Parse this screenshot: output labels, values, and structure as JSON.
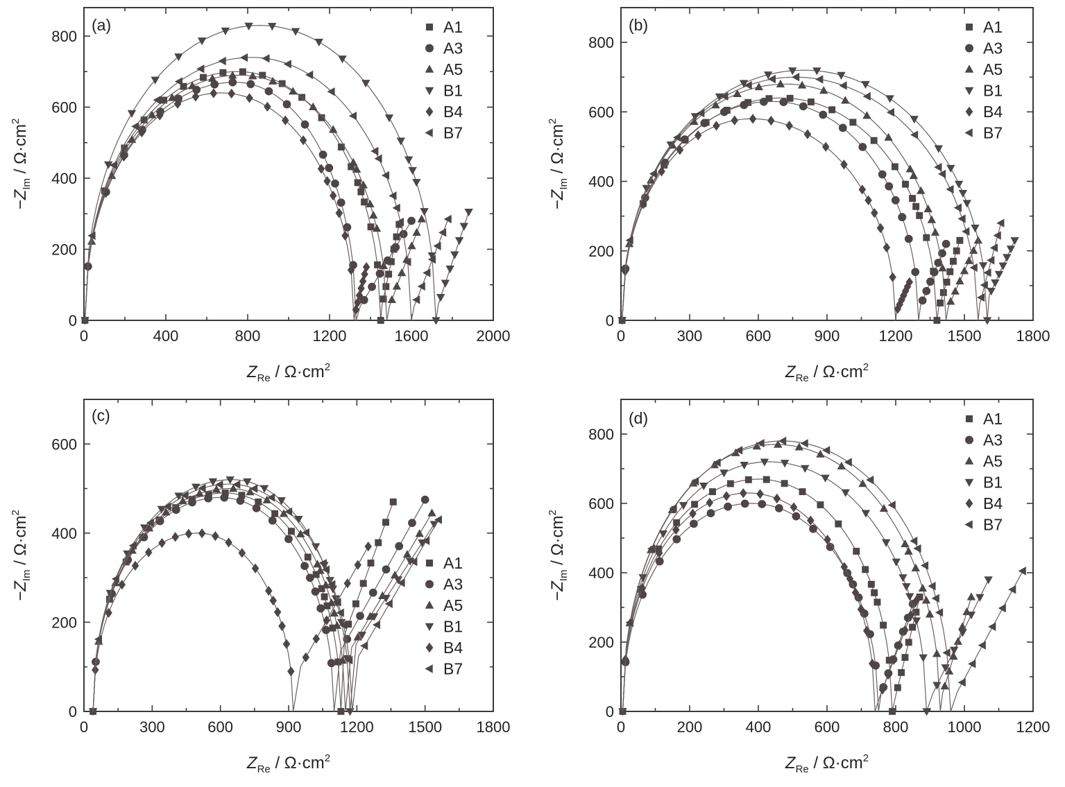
{
  "chart_data": [
    {
      "type": "scatter",
      "panel_label": "(a)",
      "xlabel": {
        "var": "Z",
        "sub": "Re",
        "unit": " / Ω·cm",
        "sup": "2"
      },
      "ylabel": {
        "var": "−Z",
        "sub": "Im",
        "unit": " / Ω·cm",
        "sup": "2"
      },
      "xlim": [
        0,
        2000
      ],
      "ylim": [
        0,
        880
      ],
      "xticks": [
        0,
        400,
        800,
        1200,
        1600,
        2000
      ],
      "yticks": [
        0,
        200,
        400,
        600,
        800
      ],
      "legend": "top-right",
      "series": [
        {
          "name": "A1",
          "marker": "square",
          "arc": [
            5,
            1450,
            750,
            700,
            0.92,
            0.97
          ],
          "tail": [
            [
              1450,
              25
            ],
            [
              1540,
              270
            ]
          ]
        },
        {
          "name": "A3",
          "marker": "circle",
          "arc": [
            5,
            1330,
            740,
            670,
            0.92,
            0.97
          ],
          "tail": [
            [
              1330,
              20
            ],
            [
              1600,
              280
            ]
          ]
        },
        {
          "name": "A5",
          "marker": "triangle-up",
          "arc": [
            5,
            1480,
            760,
            690,
            0.92,
            0.97
          ],
          "tail": [
            [
              1480,
              20
            ],
            [
              1650,
              285
            ]
          ]
        },
        {
          "name": "B1",
          "marker": "triangle-down",
          "arc": [
            5,
            1720,
            860,
            830,
            0.92,
            0.97
          ],
          "tail": [
            [
              1720,
              25
            ],
            [
              1880,
              305
            ]
          ]
        },
        {
          "name": "B4",
          "marker": "diamond",
          "arc": [
            5,
            1320,
            670,
            640,
            0.92,
            0.97
          ],
          "tail": [
            [
              1320,
              10
            ],
            [
              1380,
              150
            ]
          ]
        },
        {
          "name": "B7",
          "marker": "triangle-left",
          "arc": [
            5,
            1600,
            820,
            740,
            0.92,
            0.97
          ],
          "tail": [
            [
              1600,
              20
            ],
            [
              1780,
              285
            ]
          ]
        }
      ]
    },
    {
      "type": "scatter",
      "panel_label": "(b)",
      "xlabel": {
        "var": "Z",
        "sub": "Re",
        "unit": " / Ω·cm",
        "sup": "2"
      },
      "ylabel": {
        "var": "−Z",
        "sub": "Im",
        "unit": " / Ω·cm",
        "sup": "2"
      },
      "xlim": [
        0,
        1800
      ],
      "ylim": [
        0,
        900
      ],
      "xticks": [
        0,
        300,
        600,
        900,
        1200,
        1500,
        1800
      ],
      "yticks": [
        0,
        200,
        400,
        600,
        800
      ],
      "legend": "top-right",
      "series": [
        {
          "name": "A1",
          "marker": "square",
          "arc": [
            5,
            1380,
            700,
            640,
            0.92,
            0.97
          ],
          "tail": [
            [
              1380,
              20
            ],
            [
              1480,
              230
            ]
          ]
        },
        {
          "name": "A3",
          "marker": "circle",
          "arc": [
            5,
            1300,
            660,
            630,
            0.92,
            0.97
          ],
          "tail": [
            [
              1300,
              30
            ],
            [
              1420,
              220
            ]
          ]
        },
        {
          "name": "A5",
          "marker": "triangle-up",
          "arc": [
            5,
            1420,
            720,
            680,
            0.92,
            0.97
          ],
          "tail": [
            [
              1420,
              25
            ],
            [
              1560,
              230
            ]
          ]
        },
        {
          "name": "B1",
          "marker": "triangle-down",
          "arc": [
            5,
            1600,
            800,
            720,
            0.92,
            0.97
          ],
          "tail": [
            [
              1600,
              60
            ],
            [
              1720,
              230
            ]
          ]
        },
        {
          "name": "B4",
          "marker": "diamond",
          "arc": [
            5,
            1200,
            570,
            580,
            0.92,
            0.97
          ],
          "tail": [
            [
              1200,
              20
            ],
            [
              1260,
              110
            ]
          ]
        },
        {
          "name": "B7",
          "marker": "triangle-left",
          "arc": [
            5,
            1560,
            760,
            700,
            0.92,
            0.97
          ],
          "tail": [
            [
              1560,
              30
            ],
            [
              1660,
              280
            ]
          ]
        }
      ]
    },
    {
      "type": "scatter",
      "panel_label": "(c)",
      "xlabel": {
        "var": "Z",
        "sub": "Re",
        "unit": " / Ω·cm",
        "sup": "2"
      },
      "ylabel": {
        "var": "−Z",
        "sub": "Im",
        "unit": " / Ω·cm",
        "sup": "2"
      },
      "xlim": [
        0,
        1800
      ],
      "ylim": [
        0,
        700
      ],
      "xticks": [
        0,
        300,
        600,
        900,
        1200,
        1500,
        1800
      ],
      "yticks": [
        0,
        200,
        400,
        600
      ],
      "legend": "bottom-right",
      "series": [
        {
          "name": "A1",
          "marker": "square",
          "arc": [
            40,
            1130,
            620,
            490,
            0.92,
            0.97
          ],
          "tail": [
            [
              1130,
              150
            ],
            [
              1360,
              470
            ]
          ]
        },
        {
          "name": "A3",
          "marker": "circle",
          "arc": [
            40,
            1100,
            600,
            480,
            0.92,
            0.97
          ],
          "tail": [
            [
              1100,
              110
            ],
            [
              1500,
              475
            ]
          ]
        },
        {
          "name": "A5",
          "marker": "triangle-up",
          "arc": [
            40,
            1150,
            640,
            500,
            0.92,
            0.97
          ],
          "tail": [
            [
              1150,
              120
            ],
            [
              1530,
              445
            ]
          ]
        },
        {
          "name": "B1",
          "marker": "triangle-down",
          "arc": [
            40,
            1170,
            650,
            520,
            0.92,
            0.97
          ],
          "tail": [
            [
              1170,
              130
            ],
            [
              1540,
              420
            ]
          ]
        },
        {
          "name": "B4",
          "marker": "diamond",
          "arc": [
            40,
            920,
            500,
            400,
            0.92,
            0.97
          ],
          "tail": [
            [
              930,
              80
            ],
            [
              1250,
              370
            ]
          ]
        },
        {
          "name": "B7",
          "marker": "triangle-left",
          "arc": [
            40,
            1180,
            640,
            510,
            0.92,
            0.97
          ],
          "tail": [
            [
              1180,
              100
            ],
            [
              1560,
              430
            ]
          ]
        }
      ]
    },
    {
      "type": "scatter",
      "panel_label": "(d)",
      "xlabel": {
        "var": "Z",
        "sub": "Re",
        "unit": " / Ω·cm",
        "sup": "2"
      },
      "ylabel": {
        "var": "−Z",
        "sub": "Im",
        "unit": " / Ω·cm",
        "sup": "2"
      },
      "xlim": [
        0,
        1200
      ],
      "ylim": [
        0,
        900
      ],
      "xticks": [
        0,
        200,
        400,
        600,
        800,
        1000,
        1200
      ],
      "yticks": [
        0,
        200,
        400,
        600,
        800
      ],
      "legend": "top-right",
      "series": [
        {
          "name": "A1",
          "marker": "square",
          "arc": [
            5,
            790,
            400,
            670,
            0.92,
            0.97
          ],
          "tail": [
            [
              795,
              25
            ],
            [
              870,
              330
            ]
          ]
        },
        {
          "name": "A3",
          "marker": "circle",
          "arc": [
            5,
            750,
            380,
            600,
            0.92,
            0.97
          ],
          "tail": [
            [
              750,
              30
            ],
            [
              850,
              310
            ]
          ]
        },
        {
          "name": "A5",
          "marker": "triangle-up",
          "arc": [
            5,
            930,
            450,
            770,
            0.92,
            0.97
          ],
          "tail": [
            [
              930,
              30
            ],
            [
              1020,
              330
            ]
          ]
        },
        {
          "name": "B1",
          "marker": "triangle-down",
          "arc": [
            5,
            890,
            430,
            720,
            0.92,
            0.97
          ],
          "tail": [
            [
              895,
              25
            ],
            [
              1070,
              380
            ]
          ]
        },
        {
          "name": "B4",
          "marker": "diamond",
          "arc": [
            5,
            740,
            370,
            630,
            0.92,
            0.97
          ],
          "tail": [
            [
              745,
              20
            ],
            [
              860,
              320
            ]
          ]
        },
        {
          "name": "B7",
          "marker": "triangle-left",
          "arc": [
            5,
            960,
            470,
            780,
            0.92,
            0.97
          ],
          "tail": [
            [
              965,
              30
            ],
            [
              1170,
              405
            ]
          ]
        }
      ]
    }
  ]
}
